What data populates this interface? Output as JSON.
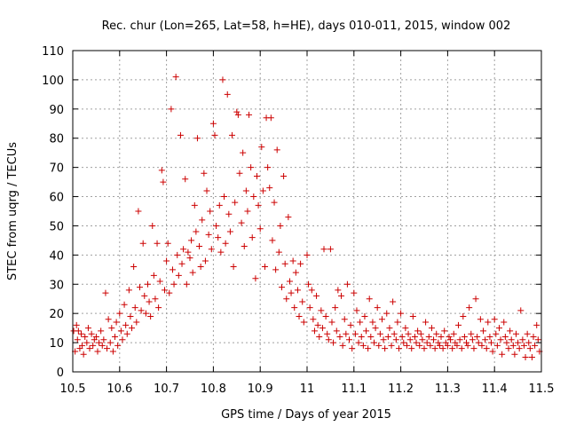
{
  "chart_data": {
    "type": "scatter",
    "title": "Rec. chur (Lon=265, Lat=58, h=HE), days 010-011, 2015, window 002",
    "xlabel": "GPS time / Days of year 2015",
    "ylabel": "STEC from uqrg / TECUs",
    "xlim": [
      10.5,
      11.5
    ],
    "ylim": [
      0,
      110
    ],
    "xticks": [
      "10.5",
      "10.6",
      "10.7",
      "10.8",
      "10.9",
      "11",
      "11.1",
      "11.2",
      "11.3",
      "11.4",
      "11.5"
    ],
    "yticks": [
      "0",
      "10",
      "20",
      "30",
      "40",
      "50",
      "60",
      "70",
      "80",
      "90",
      "100",
      "110"
    ],
    "grid": true,
    "marker": "plus",
    "color": "#cc0000",
    "points": [
      [
        10.502,
        14
      ],
      [
        10.505,
        7
      ],
      [
        10.508,
        16
      ],
      [
        10.51,
        11
      ],
      [
        10.512,
        14
      ],
      [
        10.515,
        8
      ],
      [
        10.518,
        13
      ],
      [
        10.52,
        9
      ],
      [
        10.523,
        6
      ],
      [
        10.526,
        12
      ],
      [
        10.53,
        10
      ],
      [
        10.533,
        15
      ],
      [
        10.536,
        8
      ],
      [
        10.54,
        13
      ],
      [
        10.543,
        9
      ],
      [
        10.546,
        11
      ],
      [
        10.55,
        12
      ],
      [
        10.553,
        7
      ],
      [
        10.556,
        10
      ],
      [
        10.56,
        14
      ],
      [
        10.563,
        9
      ],
      [
        10.566,
        11
      ],
      [
        10.57,
        27
      ],
      [
        10.573,
        8
      ],
      [
        10.576,
        18
      ],
      [
        10.58,
        10
      ],
      [
        10.583,
        15
      ],
      [
        10.586,
        7
      ],
      [
        10.59,
        12
      ],
      [
        10.593,
        17
      ],
      [
        10.596,
        9
      ],
      [
        10.6,
        20
      ],
      [
        10.603,
        14
      ],
      [
        10.606,
        11
      ],
      [
        10.61,
        23
      ],
      [
        10.613,
        16
      ],
      [
        10.616,
        13
      ],
      [
        10.62,
        28
      ],
      [
        10.623,
        19
      ],
      [
        10.626,
        15
      ],
      [
        10.63,
        36
      ],
      [
        10.633,
        22
      ],
      [
        10.636,
        17
      ],
      [
        10.64,
        55
      ],
      [
        10.643,
        29
      ],
      [
        10.646,
        21
      ],
      [
        10.65,
        44
      ],
      [
        10.653,
        26
      ],
      [
        10.656,
        20
      ],
      [
        10.66,
        30
      ],
      [
        10.663,
        24
      ],
      [
        10.666,
        19
      ],
      [
        10.67,
        50
      ],
      [
        10.673,
        33
      ],
      [
        10.676,
        25
      ],
      [
        10.68,
        44
      ],
      [
        10.683,
        22
      ],
      [
        10.686,
        31
      ],
      [
        10.69,
        69
      ],
      [
        10.693,
        65
      ],
      [
        10.696,
        28
      ],
      [
        10.7,
        38
      ],
      [
        10.703,
        44
      ],
      [
        10.706,
        27
      ],
      [
        10.71,
        90
      ],
      [
        10.713,
        35
      ],
      [
        10.716,
        30
      ],
      [
        10.72,
        101
      ],
      [
        10.723,
        40
      ],
      [
        10.726,
        33
      ],
      [
        10.73,
        81
      ],
      [
        10.733,
        37
      ],
      [
        10.736,
        42
      ],
      [
        10.74,
        66
      ],
      [
        10.743,
        30
      ],
      [
        10.746,
        41
      ],
      [
        10.75,
        39
      ],
      [
        10.753,
        45
      ],
      [
        10.756,
        34
      ],
      [
        10.76,
        57
      ],
      [
        10.763,
        48
      ],
      [
        10.766,
        80
      ],
      [
        10.77,
        43
      ],
      [
        10.773,
        36
      ],
      [
        10.776,
        52
      ],
      [
        10.78,
        68
      ],
      [
        10.783,
        38
      ],
      [
        10.786,
        62
      ],
      [
        10.79,
        47
      ],
      [
        10.793,
        55
      ],
      [
        10.796,
        42
      ],
      [
        10.8,
        85
      ],
      [
        10.803,
        81
      ],
      [
        10.806,
        50
      ],
      [
        10.81,
        46
      ],
      [
        10.813,
        57
      ],
      [
        10.816,
        41
      ],
      [
        10.82,
        100
      ],
      [
        10.823,
        60
      ],
      [
        10.826,
        44
      ],
      [
        10.83,
        95
      ],
      [
        10.833,
        54
      ],
      [
        10.836,
        48
      ],
      [
        10.84,
        81
      ],
      [
        10.843,
        36
      ],
      [
        10.846,
        58
      ],
      [
        10.85,
        89
      ],
      [
        10.853,
        88
      ],
      [
        10.856,
        68
      ],
      [
        10.86,
        51
      ],
      [
        10.863,
        75
      ],
      [
        10.866,
        43
      ],
      [
        10.87,
        62
      ],
      [
        10.873,
        55
      ],
      [
        10.876,
        88
      ],
      [
        10.88,
        70
      ],
      [
        10.883,
        46
      ],
      [
        10.886,
        60
      ],
      [
        10.89,
        32
      ],
      [
        10.893,
        67
      ],
      [
        10.896,
        57
      ],
      [
        10.9,
        49
      ],
      [
        10.903,
        77
      ],
      [
        10.906,
        62
      ],
      [
        10.91,
        36
      ],
      [
        10.913,
        87
      ],
      [
        10.916,
        70
      ],
      [
        10.92,
        63
      ],
      [
        10.923,
        87
      ],
      [
        10.926,
        45
      ],
      [
        10.93,
        58
      ],
      [
        10.933,
        35
      ],
      [
        10.936,
        76
      ],
      [
        10.94,
        41
      ],
      [
        10.943,
        50
      ],
      [
        10.946,
        29
      ],
      [
        10.95,
        67
      ],
      [
        10.953,
        37
      ],
      [
        10.956,
        25
      ],
      [
        10.96,
        53
      ],
      [
        10.963,
        31
      ],
      [
        10.966,
        27
      ],
      [
        10.97,
        38
      ],
      [
        10.973,
        22
      ],
      [
        10.976,
        34
      ],
      [
        10.98,
        28
      ],
      [
        10.983,
        19
      ],
      [
        10.986,
        37
      ],
      [
        10.99,
        24
      ],
      [
        10.993,
        17
      ],
      [
        11.0,
        40
      ],
      [
        11.003,
        30
      ],
      [
        11.006,
        22
      ],
      [
        11.01,
        28
      ],
      [
        11.013,
        18
      ],
      [
        11.016,
        14
      ],
      [
        11.02,
        26
      ],
      [
        11.023,
        16
      ],
      [
        11.026,
        12
      ],
      [
        11.03,
        21
      ],
      [
        11.033,
        15
      ],
      [
        11.036,
        42
      ],
      [
        11.04,
        19
      ],
      [
        11.043,
        13
      ],
      [
        11.046,
        11
      ],
      [
        11.05,
        42
      ],
      [
        11.053,
        17
      ],
      [
        11.056,
        10
      ],
      [
        11.06,
        22
      ],
      [
        11.063,
        14
      ],
      [
        11.066,
        28
      ],
      [
        11.07,
        12
      ],
      [
        11.073,
        26
      ],
      [
        11.076,
        9
      ],
      [
        11.08,
        18
      ],
      [
        11.083,
        13
      ],
      [
        11.086,
        30
      ],
      [
        11.09,
        11
      ],
      [
        11.093,
        16
      ],
      [
        11.096,
        8
      ],
      [
        11.1,
        27
      ],
      [
        11.103,
        13
      ],
      [
        11.106,
        21
      ],
      [
        11.11,
        10
      ],
      [
        11.113,
        17
      ],
      [
        11.116,
        12
      ],
      [
        11.12,
        9
      ],
      [
        11.123,
        19
      ],
      [
        11.126,
        14
      ],
      [
        11.13,
        8
      ],
      [
        11.133,
        25
      ],
      [
        11.136,
        12
      ],
      [
        11.14,
        17
      ],
      [
        11.143,
        10
      ],
      [
        11.146,
        15
      ],
      [
        11.15,
        22
      ],
      [
        11.153,
        9
      ],
      [
        11.156,
        13
      ],
      [
        11.16,
        18
      ],
      [
        11.163,
        11
      ],
      [
        11.166,
        8
      ],
      [
        11.17,
        20
      ],
      [
        11.173,
        12
      ],
      [
        11.176,
        15
      ],
      [
        11.18,
        9
      ],
      [
        11.183,
        24
      ],
      [
        11.186,
        13
      ],
      [
        11.19,
        11
      ],
      [
        11.193,
        17
      ],
      [
        11.196,
        8
      ],
      [
        11.2,
        20
      ],
      [
        11.203,
        12
      ],
      [
        11.206,
        10
      ],
      [
        11.21,
        15
      ],
      [
        11.213,
        9
      ],
      [
        11.216,
        13
      ],
      [
        11.22,
        11
      ],
      [
        11.223,
        8
      ],
      [
        11.226,
        19
      ],
      [
        11.23,
        12
      ],
      [
        11.233,
        10
      ],
      [
        11.236,
        14
      ],
      [
        11.24,
        9
      ],
      [
        11.243,
        13
      ],
      [
        11.246,
        11
      ],
      [
        11.25,
        8
      ],
      [
        11.253,
        17
      ],
      [
        11.256,
        10
      ],
      [
        11.26,
        12
      ],
      [
        11.263,
        9
      ],
      [
        11.266,
        15
      ],
      [
        11.27,
        11
      ],
      [
        11.273,
        8
      ],
      [
        11.276,
        13
      ],
      [
        11.28,
        10
      ],
      [
        11.283,
        9
      ],
      [
        11.286,
        12
      ],
      [
        11.29,
        8
      ],
      [
        11.293,
        14
      ],
      [
        11.296,
        10
      ],
      [
        11.3,
        9
      ],
      [
        11.303,
        12
      ],
      [
        11.306,
        11
      ],
      [
        11.31,
        8
      ],
      [
        11.313,
        13
      ],
      [
        11.316,
        10
      ],
      [
        11.32,
        9
      ],
      [
        11.323,
        16
      ],
      [
        11.326,
        11
      ],
      [
        11.33,
        8
      ],
      [
        11.333,
        19
      ],
      [
        11.336,
        12
      ],
      [
        11.34,
        10
      ],
      [
        11.343,
        9
      ],
      [
        11.346,
        22
      ],
      [
        11.35,
        13
      ],
      [
        11.353,
        11
      ],
      [
        11.356,
        8
      ],
      [
        11.36,
        25
      ],
      [
        11.363,
        12
      ],
      [
        11.366,
        10
      ],
      [
        11.37,
        18
      ],
      [
        11.373,
        9
      ],
      [
        11.376,
        14
      ],
      [
        11.38,
        11
      ],
      [
        11.383,
        8
      ],
      [
        11.386,
        17
      ],
      [
        11.39,
        12
      ],
      [
        11.393,
        10
      ],
      [
        11.396,
        7
      ],
      [
        11.4,
        18
      ],
      [
        11.403,
        13
      ],
      [
        11.406,
        9
      ],
      [
        11.41,
        15
      ],
      [
        11.413,
        11
      ],
      [
        11.416,
        6
      ],
      [
        11.42,
        17
      ],
      [
        11.423,
        12
      ],
      [
        11.426,
        10
      ],
      [
        11.43,
        8
      ],
      [
        11.433,
        14
      ],
      [
        11.436,
        11
      ],
      [
        11.44,
        9
      ],
      [
        11.443,
        6
      ],
      [
        11.446,
        13
      ],
      [
        11.45,
        10
      ],
      [
        11.453,
        8
      ],
      [
        11.456,
        21
      ],
      [
        11.46,
        11
      ],
      [
        11.463,
        9
      ],
      [
        11.466,
        5
      ],
      [
        11.47,
        13
      ],
      [
        11.473,
        10
      ],
      [
        11.476,
        8
      ],
      [
        11.48,
        5
      ],
      [
        11.483,
        12
      ],
      [
        11.486,
        9
      ],
      [
        11.49,
        16
      ],
      [
        11.493,
        11
      ],
      [
        11.496,
        7
      ]
    ]
  }
}
